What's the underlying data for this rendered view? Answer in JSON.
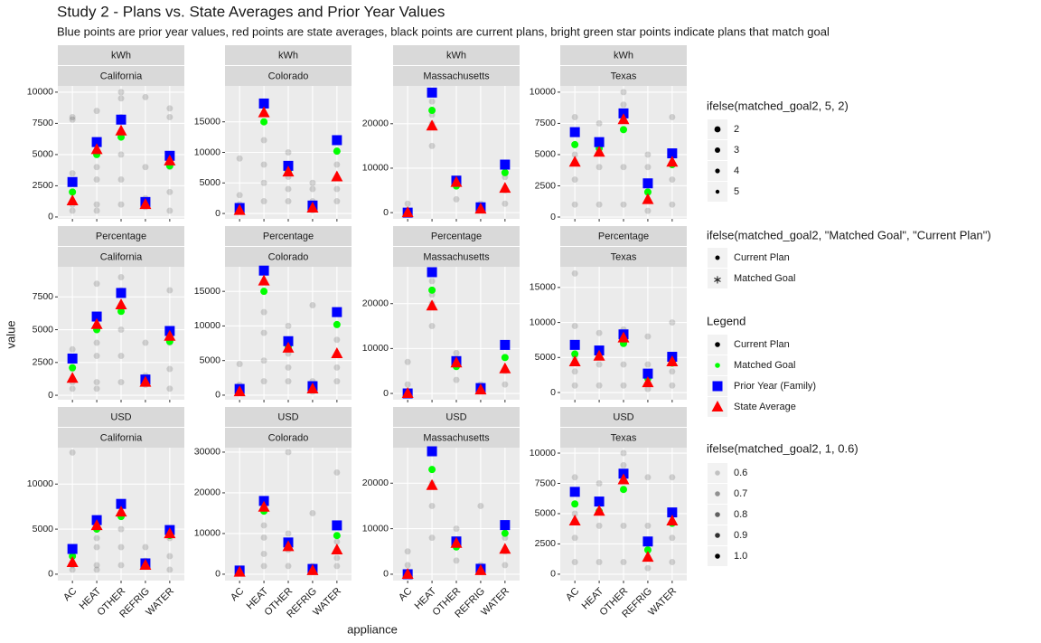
{
  "chart_data": {
    "type": "scatter",
    "title": "Study 2 - Plans vs. State Averages and Prior Year Values",
    "subtitle": "Blue points are prior year values, red points are state averages, black points are current plans, bright green star points indicate plans that match goal",
    "x_label": "appliance",
    "y_label": "value",
    "categories": [
      "AC",
      "HEAT",
      "OTHER",
      "REFRIG",
      "WATER"
    ],
    "series": [
      {
        "name": "Current Plan",
        "color": "#000000",
        "shape": "circle"
      },
      {
        "name": "Matched Goal",
        "color": "#00ff00",
        "shape": "circle"
      },
      {
        "name": "Prior Year (Family)",
        "color": "#0000ff",
        "shape": "square"
      },
      {
        "name": "State Average",
        "color": "#ff0000",
        "shape": "triangle"
      }
    ],
    "size_legend": {
      "title": "ifelse(matched_goal2, 5, 2)",
      "entries": [
        2,
        3,
        4,
        5
      ]
    },
    "shape_legend": {
      "title": "ifelse(matched_goal2, \"Matched Goal\", \"Current Plan\")",
      "entries": [
        "Current Plan",
        "Matched Goal"
      ]
    },
    "color_legend_title": "Legend",
    "alpha_legend": {
      "title": "ifelse(matched_goal2, 1, 0.6)",
      "entries": [
        0.6,
        0.7,
        0.8,
        0.9,
        {
          "value": 1,
          "label": "1.0"
        }
      ]
    },
    "panels": [
      {
        "unit": "kWh",
        "state": "California",
        "ylim": [
          -150,
          10500
        ],
        "yticks": [
          0,
          2500,
          5000,
          7500,
          10000
        ],
        "series_values": [
          [
            [
              500,
              1000,
              2000,
              3500,
              7800,
              8000
            ],
            [
              500,
              1000,
              3000,
              4000,
              8500
            ],
            [
              1000,
              3000,
              5000,
              8000,
              9500,
              10000
            ],
            [
              800,
              1500,
              4000,
              9600
            ],
            [
              500,
              2000,
              4000,
              8000,
              8700
            ]
          ],
          [
            2000,
            5000,
            6400,
            null,
            4100
          ],
          [
            2800,
            6000,
            7800,
            1200,
            4900
          ],
          [
            1300,
            5400,
            6900,
            1000,
            4500
          ]
        ]
      },
      {
        "unit": "kWh",
        "state": "Colorado",
        "ylim": [
          -880,
          20880
        ],
        "yticks": [
          0,
          5000,
          10000,
          15000
        ],
        "series_values": [
          [
            [
              300,
              1500,
              3000,
              9000
            ],
            [
              2000,
              5000,
              8000,
              12000,
              15000
            ],
            [
              2000,
              4000,
              6000,
              8000,
              10000
            ],
            [
              500,
              2000,
              4000,
              5000
            ],
            [
              2000,
              4000,
              8000,
              12000
            ]
          ],
          [
            null,
            15000,
            7000,
            null,
            10200
          ],
          [
            900,
            18000,
            7800,
            1300,
            12000
          ],
          [
            500,
            16500,
            6800,
            900,
            6000
          ]
        ]
      },
      {
        "unit": "kWh",
        "state": "Massachusetts",
        "ylim": [
          -1400,
          28500
        ],
        "yticks": [
          0,
          10000,
          20000
        ],
        "series_values": [
          [
            [
              500,
              2000
            ],
            [
              15000,
              20000,
              22000,
              25000
            ],
            [
              3000,
              6000
            ],
            [
              500,
              2000
            ],
            [
              2000,
              5000,
              8000
            ]
          ],
          [
            null,
            23000,
            6000,
            null,
            9000
          ],
          [
            0,
            27000,
            7200,
            1200,
            10800
          ],
          [
            0,
            19500,
            6800,
            800,
            5500
          ]
        ]
      },
      {
        "unit": "kWh",
        "state": "Texas",
        "ylim": [
          -144,
          10500
        ],
        "yticks": [
          0,
          2500,
          5000,
          7500,
          10000
        ],
        "series_values": [
          [
            [
              1000,
              3000,
              5000,
              8000
            ],
            [
              1000,
              4000,
              7500
            ],
            [
              1000,
              4000,
              9000,
              10000
            ],
            [
              500,
              2000,
              4000,
              5000
            ],
            [
              1000,
              3000,
              5000,
              8000
            ]
          ],
          [
            5800,
            5500,
            7000,
            2000,
            4200
          ],
          [
            6800,
            6000,
            8300,
            2700,
            5100
          ],
          [
            4400,
            5200,
            7800,
            1400,
            4400
          ]
        ]
      },
      {
        "unit": "Percentage",
        "state": "California",
        "ylim": [
          -340,
          9795
        ],
        "yticks": [
          0,
          2500,
          5000,
          7500
        ],
        "series_values": [
          [
            [
              500,
              1000,
              2000,
              3500
            ],
            [
              500,
              1000,
              3000,
              4000,
              8500
            ],
            [
              1000,
              3000,
              5000,
              8000,
              9000
            ],
            [
              800,
              1500,
              4000
            ],
            [
              500,
              2000,
              4000,
              8000
            ]
          ],
          [
            2100,
            5000,
            6400,
            null,
            4100
          ],
          [
            2800,
            6000,
            7800,
            1200,
            4900
          ],
          [
            1300,
            5400,
            6900,
            1000,
            4500
          ]
        ]
      },
      {
        "unit": "Percentage",
        "state": "Colorado",
        "ylim": [
          -660,
          18550
        ],
        "yticks": [
          0,
          5000,
          10000,
          15000
        ],
        "series_values": [
          [
            [
              300,
              1500,
              4500
            ],
            [
              2000,
              5000,
              9000,
              12000,
              15000
            ],
            [
              2000,
              4000,
              6000,
              8000,
              10000
            ],
            [
              500,
              2000,
              13000
            ],
            [
              2000,
              4000,
              8000,
              12000
            ]
          ],
          [
            null,
            15000,
            7000,
            null,
            10200
          ],
          [
            900,
            18000,
            7800,
            1300,
            12000
          ],
          [
            500,
            16500,
            6800,
            900,
            6000
          ]
        ]
      },
      {
        "unit": "Percentage",
        "state": "Massachusetts",
        "ylim": [
          -1400,
          28200
        ],
        "yticks": [
          0,
          10000,
          20000
        ],
        "series_values": [
          [
            [
              500,
              2000,
              7000
            ],
            [
              15000,
              20000,
              22000,
              25000
            ],
            [
              3000,
              6000,
              9000
            ],
            [
              500,
              2000
            ],
            [
              2000,
              5000,
              8000
            ]
          ],
          [
            null,
            23000,
            6000,
            null,
            8000
          ],
          [
            0,
            27000,
            7200,
            1200,
            10800
          ],
          [
            0,
            19500,
            6800,
            800,
            5500
          ]
        ]
      },
      {
        "unit": "Percentage",
        "state": "Texas",
        "ylim": [
          -1030,
          17950
        ],
        "yticks": [
          0,
          5000,
          10000,
          15000
        ],
        "series_values": [
          [
            [
              1000,
              3000,
              5000,
              9500,
              17000
            ],
            [
              1000,
              4000,
              8500
            ],
            [
              1000,
              4000,
              9000
            ],
            [
              500,
              2000,
              4000,
              8000
            ],
            [
              1000,
              3000,
              5000,
              10000
            ]
          ],
          [
            5500,
            5500,
            7000,
            2000,
            4200
          ],
          [
            6800,
            6000,
            8300,
            2700,
            5100
          ],
          [
            4400,
            5200,
            7800,
            1400,
            4400
          ]
        ]
      },
      {
        "unit": "USD",
        "state": "California",
        "ylim": [
          -710,
          14040
        ],
        "yticks": [
          0,
          5000,
          10000
        ],
        "series_values": [
          [
            [
              500,
              1000,
              2000,
              13500
            ],
            [
              500,
              1000,
              3000,
              4000
            ],
            [
              1000,
              3000,
              5000,
              8000
            ],
            [
              800,
              1500,
              3000
            ],
            [
              500,
              2000,
              4000
            ]
          ],
          [
            2000,
            5000,
            6400,
            null,
            4300
          ],
          [
            2800,
            6000,
            7800,
            1200,
            4900
          ],
          [
            1300,
            5400,
            6900,
            1000,
            4500
          ]
        ]
      },
      {
        "unit": "USD",
        "state": "Colorado",
        "ylim": [
          -1570,
          31100
        ],
        "yticks": [
          0,
          10000,
          20000,
          30000
        ],
        "series_values": [
          [
            [
              300,
              1000
            ],
            [
              2000,
              5000,
              9000,
              12000
            ],
            [
              2000,
              6000,
              10000,
              30000
            ],
            [
              500,
              2000,
              15000
            ],
            [
              2000,
              4000,
              8000,
              25000
            ]
          ],
          [
            null,
            15500,
            7000,
            null,
            9500
          ],
          [
            900,
            18000,
            7800,
            1300,
            12000
          ],
          [
            500,
            16500,
            6800,
            900,
            6000
          ]
        ]
      },
      {
        "unit": "USD",
        "state": "Massachusetts",
        "ylim": [
          -1400,
          27800
        ],
        "yticks": [
          0,
          10000,
          20000
        ],
        "series_values": [
          [
            [
              500,
              2000,
              5000
            ],
            [
              8000,
              15000,
              20000
            ],
            [
              3000,
              6000,
              10000
            ],
            [
              500,
              2000,
              15000
            ],
            [
              2000,
              5000,
              8000
            ]
          ],
          [
            null,
            23000,
            6000,
            null,
            9000
          ],
          [
            0,
            27000,
            7200,
            1200,
            10800
          ],
          [
            0,
            19500,
            6800,
            800,
            5500
          ]
        ]
      },
      {
        "unit": "USD",
        "state": "Texas",
        "ylim": [
          -530,
          10450
        ],
        "yticks": [
          0,
          2500,
          5000,
          7500,
          10000
        ],
        "series_values": [
          [
            [
              1000,
              3000,
              5000,
              8000
            ],
            [
              1000,
              4000,
              7500
            ],
            [
              1000,
              4000,
              9000,
              10000
            ],
            [
              500,
              2000,
              4000,
              8000
            ],
            [
              1000,
              3000,
              5000,
              8000
            ]
          ],
          [
            5800,
            5200,
            7000,
            2000,
            4200
          ],
          [
            6800,
            6000,
            8300,
            2700,
            5100
          ],
          [
            4400,
            5200,
            7800,
            1400,
            4400
          ]
        ]
      }
    ]
  }
}
